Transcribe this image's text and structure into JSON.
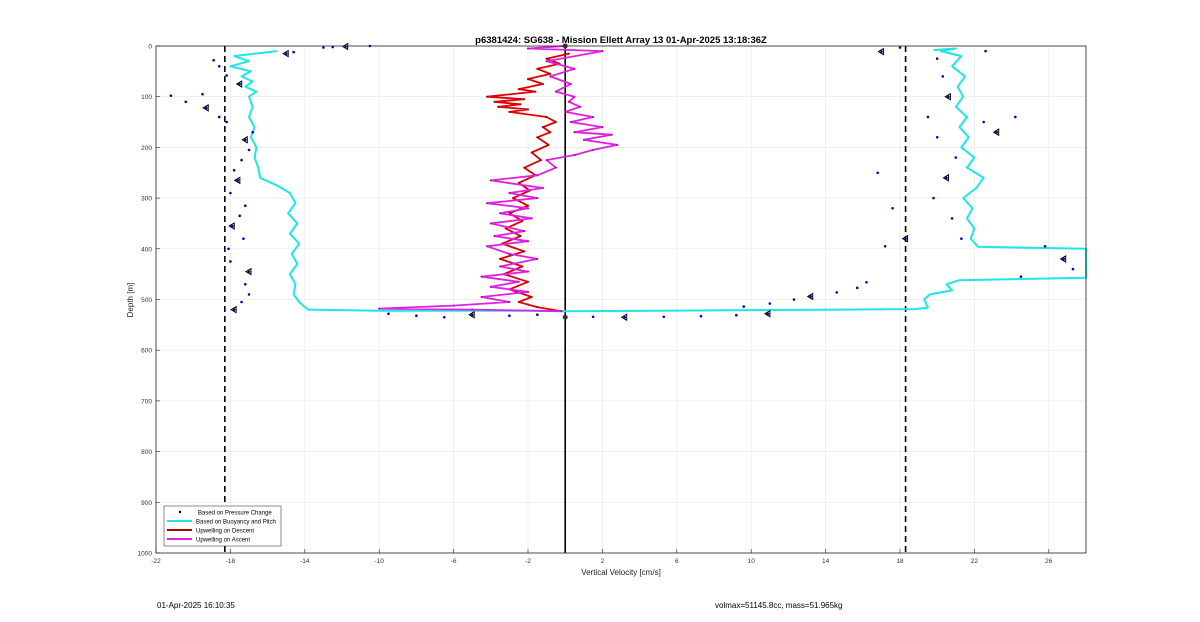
{
  "chart_data": {
    "type": "line",
    "title": "p6381424: SG638 - Mission Ellett Array 13 01-Apr-2025 13:18:36Z",
    "xlabel": "Vertical Velocity [cm/s]",
    "ylabel": "Depth [m]",
    "xlim": [
      -22,
      28
    ],
    "ylim": [
      1000,
      0
    ],
    "y_reversed": true,
    "x_ticks": [
      -22,
      -18,
      -14,
      -10,
      -6,
      -2,
      2,
      6,
      10,
      14,
      18,
      22,
      26
    ],
    "y_ticks": [
      0,
      100,
      200,
      300,
      400,
      500,
      600,
      700,
      800,
      900,
      1000
    ],
    "grid": true,
    "legend_position": "bottom-left",
    "reference_lines": {
      "zero": 0,
      "threshold_neg": -18.3,
      "threshold_pos": 18.3
    },
    "series": [
      {
        "name": "Based on Pressure Change",
        "style": "dots",
        "color": "#0000cc",
        "points": [
          [
            -10.5,
            0
          ],
          [
            -11.8,
            1
          ],
          [
            -12.5,
            2
          ],
          [
            -13.0,
            3
          ],
          [
            -14.6,
            12
          ],
          [
            -15.0,
            15
          ],
          [
            -18.9,
            28
          ],
          [
            -18.6,
            40
          ],
          [
            -18.2,
            58
          ],
          [
            -17.5,
            75
          ],
          [
            -19.5,
            95
          ],
          [
            -21.2,
            98
          ],
          [
            -20.4,
            110
          ],
          [
            -19.3,
            122
          ],
          [
            -18.6,
            140
          ],
          [
            -18.2,
            150
          ],
          [
            -16.8,
            170
          ],
          [
            -17.2,
            185
          ],
          [
            -17.0,
            205
          ],
          [
            -17.4,
            225
          ],
          [
            -17.8,
            245
          ],
          [
            -17.6,
            265
          ],
          [
            -18.0,
            290
          ],
          [
            -17.2,
            315
          ],
          [
            -17.5,
            335
          ],
          [
            -17.9,
            355
          ],
          [
            -17.3,
            380
          ],
          [
            -18.1,
            400
          ],
          [
            -18.0,
            425
          ],
          [
            -17.0,
            445
          ],
          [
            -17.2,
            470
          ],
          [
            -17.0,
            490
          ],
          [
            -17.4,
            505
          ],
          [
            -17.8,
            520
          ],
          [
            -9.5,
            528
          ],
          [
            -8.0,
            532
          ],
          [
            -6.5,
            535
          ],
          [
            -5.0,
            530
          ],
          [
            -3.0,
            532
          ],
          [
            -1.5,
            530
          ],
          [
            1.5,
            534
          ],
          [
            3.2,
            535
          ],
          [
            5.3,
            534
          ],
          [
            7.3,
            533
          ],
          [
            9.2,
            531
          ],
          [
            10.9,
            528
          ],
          [
            9.6,
            514
          ],
          [
            11.0,
            508
          ],
          [
            12.3,
            500
          ],
          [
            13.2,
            494
          ],
          [
            14.6,
            486
          ],
          [
            15.7,
            477
          ],
          [
            16.2,
            466
          ],
          [
            17.0,
            11
          ],
          [
            18.0,
            3
          ],
          [
            16.8,
            250
          ],
          [
            17.6,
            320
          ],
          [
            18.3,
            380
          ],
          [
            17.2,
            395
          ],
          [
            20.0,
            25
          ],
          [
            20.3,
            60
          ],
          [
            20.6,
            100
          ],
          [
            19.5,
            140
          ],
          [
            20.0,
            180
          ],
          [
            21.0,
            220
          ],
          [
            20.5,
            260
          ],
          [
            19.8,
            300
          ],
          [
            20.8,
            340
          ],
          [
            21.3,
            380
          ],
          [
            23.2,
            170
          ],
          [
            24.2,
            140
          ],
          [
            22.6,
            10
          ],
          [
            25.8,
            395
          ],
          [
            26.8,
            420
          ],
          [
            27.3,
            440
          ],
          [
            24.5,
            455
          ],
          [
            22.5,
            150
          ]
        ]
      },
      {
        "name": "Based on Buoyancy and Pitch",
        "style": "line",
        "color": "#1fe6e6",
        "points_descent": [
          [
            -15.5,
            10
          ],
          [
            -17.8,
            20
          ],
          [
            -17.0,
            30
          ],
          [
            -18.0,
            40
          ],
          [
            -16.9,
            50
          ],
          [
            -17.4,
            60
          ],
          [
            -16.8,
            70
          ],
          [
            -17.2,
            80
          ],
          [
            -16.6,
            90
          ],
          [
            -17.0,
            100
          ],
          [
            -16.8,
            120
          ],
          [
            -17.0,
            140
          ],
          [
            -16.7,
            160
          ],
          [
            -16.9,
            180
          ],
          [
            -16.6,
            200
          ],
          [
            -16.7,
            220
          ],
          [
            -16.5,
            240
          ],
          [
            -16.4,
            260
          ],
          [
            -15.5,
            275
          ],
          [
            -14.8,
            290
          ],
          [
            -14.5,
            310
          ],
          [
            -14.9,
            330
          ],
          [
            -14.4,
            350
          ],
          [
            -14.8,
            370
          ],
          [
            -14.3,
            390
          ],
          [
            -14.7,
            410
          ],
          [
            -14.4,
            430
          ],
          [
            -14.8,
            450
          ],
          [
            -14.5,
            470
          ],
          [
            -14.6,
            490
          ],
          [
            -14.3,
            505
          ],
          [
            -14.0,
            515
          ],
          [
            -13.8,
            520
          ],
          [
            -10.0,
            522
          ],
          [
            -2.0,
            522
          ],
          [
            -0.2,
            523
          ]
        ],
        "points_ascent": [
          [
            -0.2,
            523
          ],
          [
            5.0,
            522
          ],
          [
            10.0,
            521
          ],
          [
            15.0,
            520
          ],
          [
            18.8,
            519
          ],
          [
            19.5,
            516
          ],
          [
            19.3,
            500
          ],
          [
            19.6,
            490
          ],
          [
            20.8,
            482
          ],
          [
            20.5,
            470
          ],
          [
            21.2,
            462
          ],
          [
            28.0,
            457
          ],
          [
            28.0,
            400
          ],
          [
            22.2,
            396
          ],
          [
            21.8,
            380
          ],
          [
            22.0,
            360
          ],
          [
            21.6,
            340
          ],
          [
            21.9,
            320
          ],
          [
            21.4,
            300
          ],
          [
            22.1,
            280
          ],
          [
            22.5,
            260
          ],
          [
            21.6,
            240
          ],
          [
            22.0,
            220
          ],
          [
            21.3,
            200
          ],
          [
            21.7,
            180
          ],
          [
            21.2,
            160
          ],
          [
            21.6,
            140
          ],
          [
            21.0,
            120
          ],
          [
            21.4,
            100
          ],
          [
            21.1,
            80
          ],
          [
            21.5,
            60
          ],
          [
            20.8,
            40
          ],
          [
            21.3,
            20
          ],
          [
            20.2,
            10
          ],
          [
            21.0,
            5
          ],
          [
            19.8,
            8
          ]
        ]
      },
      {
        "name": "Upwelling on Descent",
        "style": "line",
        "color": "#e00000",
        "points": [
          [
            0.2,
            15
          ],
          [
            -1.0,
            25
          ],
          [
            -0.3,
            35
          ],
          [
            -1.5,
            45
          ],
          [
            -0.8,
            55
          ],
          [
            -2.0,
            65
          ],
          [
            -1.2,
            75
          ],
          [
            -2.5,
            85
          ],
          [
            -1.6,
            90
          ],
          [
            -4.2,
            100
          ],
          [
            -2.2,
            105
          ],
          [
            -3.8,
            110
          ],
          [
            -2.4,
            115
          ],
          [
            -3.6,
            120
          ],
          [
            -2.0,
            125
          ],
          [
            -3.0,
            130
          ],
          [
            -1.0,
            140
          ],
          [
            -0.5,
            150
          ],
          [
            -1.2,
            160
          ],
          [
            -0.8,
            170
          ],
          [
            -1.5,
            180
          ],
          [
            -0.9,
            195
          ],
          [
            -1.8,
            210
          ],
          [
            -1.3,
            225
          ],
          [
            -2.2,
            240
          ],
          [
            -1.6,
            255
          ],
          [
            -2.5,
            270
          ],
          [
            -1.9,
            285
          ],
          [
            -2.8,
            300
          ],
          [
            -2.0,
            315
          ],
          [
            -3.0,
            330
          ],
          [
            -2.3,
            345
          ],
          [
            -3.2,
            360
          ],
          [
            -2.4,
            375
          ],
          [
            -3.4,
            390
          ],
          [
            -2.2,
            405
          ],
          [
            -3.5,
            420
          ],
          [
            -2.3,
            435
          ],
          [
            -3.3,
            450
          ],
          [
            -2.0,
            465
          ],
          [
            -3.0,
            480
          ],
          [
            -1.8,
            495
          ],
          [
            -2.5,
            505
          ],
          [
            -1.5,
            515
          ],
          [
            -0.2,
            523
          ]
        ]
      },
      {
        "name": "Upwelling on Ascent",
        "style": "line",
        "color": "#e020e0",
        "points": [
          [
            -0.2,
            523
          ],
          [
            -5.0,
            520
          ],
          [
            -10.0,
            518
          ],
          [
            -6.0,
            512
          ],
          [
            -3.0,
            505
          ],
          [
            -4.5,
            495
          ],
          [
            -2.0,
            485
          ],
          [
            -4.0,
            475
          ],
          [
            -2.5,
            465
          ],
          [
            -4.5,
            455
          ],
          [
            -2.0,
            445
          ],
          [
            -3.5,
            435
          ],
          [
            -1.5,
            420
          ],
          [
            -3.0,
            410
          ],
          [
            -4.2,
            395
          ],
          [
            -2.0,
            385
          ],
          [
            -3.8,
            375
          ],
          [
            -2.2,
            365
          ],
          [
            -4.0,
            350
          ],
          [
            -1.8,
            340
          ],
          [
            -3.5,
            330
          ],
          [
            -2.0,
            320
          ],
          [
            -4.2,
            310
          ],
          [
            -1.5,
            300
          ],
          [
            -3.0,
            290
          ],
          [
            -1.2,
            280
          ],
          [
            -4.0,
            265
          ],
          [
            -1.5,
            255
          ],
          [
            -0.5,
            240
          ],
          [
            -1.0,
            225
          ],
          [
            0.5,
            215
          ],
          [
            1.5,
            205
          ],
          [
            2.8,
            195
          ],
          [
            1.0,
            185
          ],
          [
            2.5,
            175
          ],
          [
            0.5,
            170
          ],
          [
            2.0,
            160
          ],
          [
            0.3,
            150
          ],
          [
            1.5,
            140
          ],
          [
            0.0,
            130
          ],
          [
            0.8,
            120
          ],
          [
            0.2,
            110
          ],
          [
            0.5,
            100
          ],
          [
            -0.5,
            90
          ],
          [
            0.3,
            75
          ],
          [
            -0.8,
            60
          ],
          [
            0.5,
            45
          ],
          [
            -1.0,
            30
          ],
          [
            2.0,
            10
          ],
          [
            -2.0,
            5
          ],
          [
            0.0,
            0
          ]
        ]
      }
    ]
  },
  "footer": {
    "timestamp": "01-Apr-2025 16:10:35",
    "vol_mass": "volmax=51145.8cc, mass=51.965kg"
  }
}
